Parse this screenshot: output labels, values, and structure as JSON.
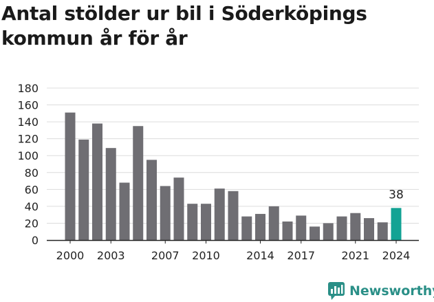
{
  "title": "Antal stölder ur bil i Söderköpings kommun år för år",
  "brand": {
    "name": "Newsworthy"
  },
  "colors": {
    "bar": "#6f6e73",
    "highlight": "#13a394",
    "grid": "#dcdcdc",
    "axis": "#222222",
    "brand": "#2a8f87"
  },
  "chart_data": {
    "type": "bar",
    "x": [
      2000,
      2001,
      2002,
      2003,
      2004,
      2005,
      2006,
      2007,
      2008,
      2009,
      2010,
      2011,
      2012,
      2013,
      2014,
      2015,
      2016,
      2017,
      2018,
      2019,
      2020,
      2021,
      2022,
      2023,
      2024
    ],
    "values": [
      151,
      119,
      138,
      109,
      68,
      135,
      95,
      64,
      74,
      43,
      43,
      61,
      58,
      28,
      31,
      40,
      22,
      29,
      16,
      20,
      28,
      32,
      26,
      21,
      38
    ],
    "x_tick_labels": [
      "2000",
      "2003",
      "2007",
      "2010",
      "2014",
      "2017",
      "2021",
      "2024"
    ],
    "y_ticks": [
      0,
      20,
      40,
      60,
      80,
      100,
      120,
      140,
      160,
      180
    ],
    "ylim": [
      0,
      180
    ],
    "highlight": {
      "x": 2024,
      "label": "38"
    },
    "grid": true,
    "legend": "none",
    "xlabel": "",
    "ylabel": ""
  }
}
